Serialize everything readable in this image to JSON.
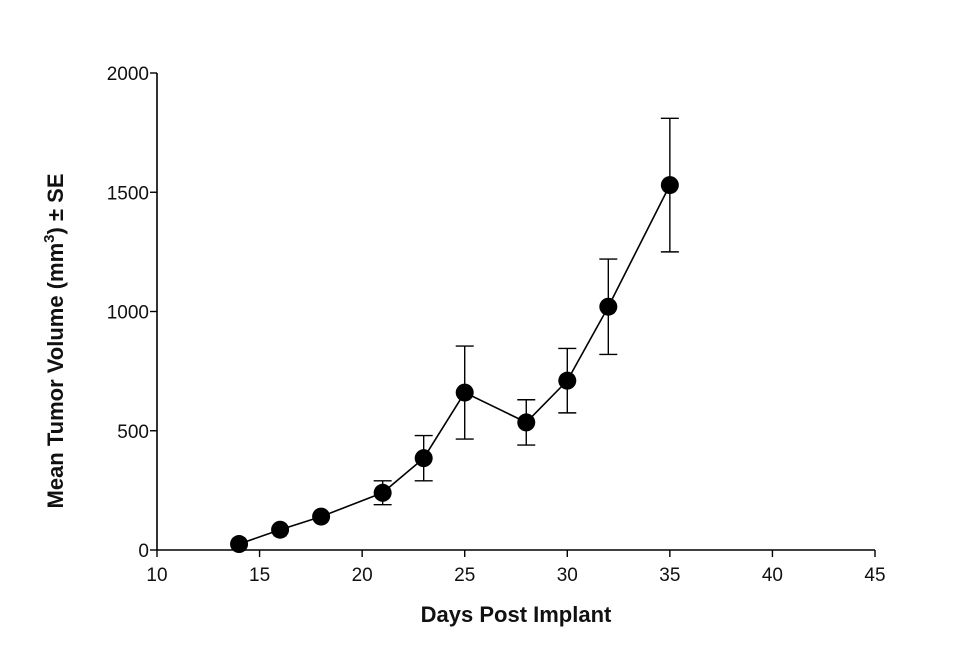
{
  "chart_data": {
    "type": "line",
    "xlabel": "Days Post Implant",
    "ylabel_main": "Mean Tumor Volume (mm",
    "ylabel_sup": "3",
    "ylabel_tail": ") ",
    "ylabel_pm": "±",
    "ylabel_end": " SE",
    "xlim": [
      10,
      45
    ],
    "ylim": [
      0,
      2000
    ],
    "xticks": [
      10,
      15,
      20,
      25,
      30,
      35,
      40,
      45
    ],
    "yticks": [
      0,
      500,
      1000,
      1500,
      2000
    ],
    "series": [
      {
        "x": [
          14,
          16,
          18,
          21,
          23,
          25,
          28,
          30,
          32,
          35
        ],
        "y": [
          25,
          85,
          140,
          240,
          385,
          660,
          535,
          710,
          1020,
          1530
        ],
        "err": [
          0,
          0,
          0,
          50,
          95,
          195,
          95,
          135,
          200,
          280
        ]
      }
    ],
    "grid": false,
    "legend": "none"
  }
}
